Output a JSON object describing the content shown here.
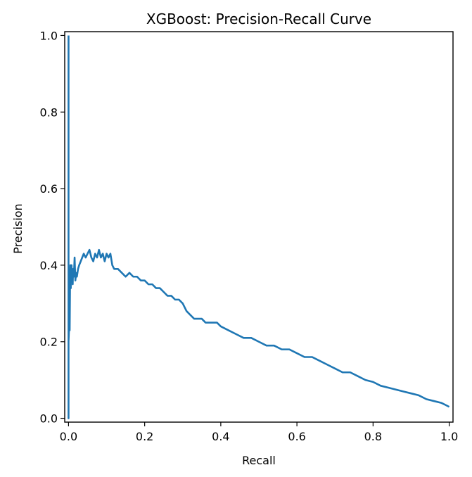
{
  "chart_data": {
    "type": "line",
    "title": "XGBoost: Precision-Recall Curve",
    "xlabel": "Recall",
    "ylabel": "Precision",
    "xlim": [
      -0.01,
      1.01
    ],
    "ylim": [
      -0.01,
      1.01
    ],
    "xticks": [
      0.0,
      0.2,
      0.4,
      0.6,
      0.8,
      1.0
    ],
    "xtick_labels": [
      "0.0",
      "0.2",
      "0.4",
      "0.6",
      "0.8",
      "1.0"
    ],
    "yticks": [
      0.0,
      0.2,
      0.4,
      0.6,
      0.8,
      1.0
    ],
    "ytick_labels": [
      "0.0",
      "0.2",
      "0.4",
      "0.6",
      "0.8",
      "1.0"
    ],
    "grid": false,
    "legend": "none",
    "line_color": "#1f77b4",
    "series": [
      {
        "x": [
          0.0,
          0.0,
          0.0,
          0.002,
          0.003,
          0.003,
          0.004,
          0.005,
          0.006,
          0.006,
          0.008,
          0.009,
          0.01,
          0.011,
          0.012,
          0.014,
          0.016,
          0.018,
          0.02,
          0.022,
          0.025,
          0.028,
          0.032,
          0.036,
          0.04,
          0.045,
          0.05,
          0.055,
          0.06,
          0.065,
          0.07,
          0.075,
          0.08,
          0.085,
          0.09,
          0.095,
          0.1,
          0.105,
          0.11,
          0.115,
          0.12,
          0.13,
          0.14,
          0.15,
          0.16,
          0.17,
          0.18,
          0.19,
          0.2,
          0.21,
          0.22,
          0.23,
          0.24,
          0.25,
          0.26,
          0.27,
          0.28,
          0.29,
          0.3,
          0.31,
          0.32,
          0.33,
          0.34,
          0.35,
          0.36,
          0.37,
          0.38,
          0.39,
          0.4,
          0.42,
          0.44,
          0.46,
          0.48,
          0.5,
          0.52,
          0.54,
          0.56,
          0.58,
          0.6,
          0.62,
          0.64,
          0.66,
          0.68,
          0.7,
          0.72,
          0.74,
          0.76,
          0.78,
          0.8,
          0.82,
          0.84,
          0.86,
          0.88,
          0.9,
          0.92,
          0.94,
          0.96,
          0.98,
          0.99,
          1.0
        ],
        "y": [
          1.0,
          0.0,
          0.2,
          0.25,
          0.3,
          0.23,
          0.35,
          0.4,
          0.34,
          0.37,
          0.4,
          0.36,
          0.38,
          0.35,
          0.39,
          0.37,
          0.42,
          0.36,
          0.38,
          0.37,
          0.39,
          0.4,
          0.41,
          0.42,
          0.43,
          0.42,
          0.43,
          0.44,
          0.42,
          0.41,
          0.43,
          0.42,
          0.44,
          0.42,
          0.43,
          0.41,
          0.43,
          0.42,
          0.43,
          0.4,
          0.39,
          0.39,
          0.38,
          0.37,
          0.38,
          0.37,
          0.37,
          0.36,
          0.36,
          0.35,
          0.35,
          0.34,
          0.34,
          0.33,
          0.32,
          0.32,
          0.31,
          0.31,
          0.3,
          0.28,
          0.27,
          0.26,
          0.26,
          0.26,
          0.25,
          0.25,
          0.25,
          0.25,
          0.24,
          0.23,
          0.22,
          0.21,
          0.21,
          0.2,
          0.19,
          0.19,
          0.18,
          0.18,
          0.17,
          0.16,
          0.16,
          0.15,
          0.14,
          0.13,
          0.12,
          0.12,
          0.11,
          0.1,
          0.095,
          0.085,
          0.08,
          0.075,
          0.07,
          0.065,
          0.06,
          0.05,
          0.045,
          0.04,
          0.035,
          0.03
        ]
      }
    ]
  }
}
